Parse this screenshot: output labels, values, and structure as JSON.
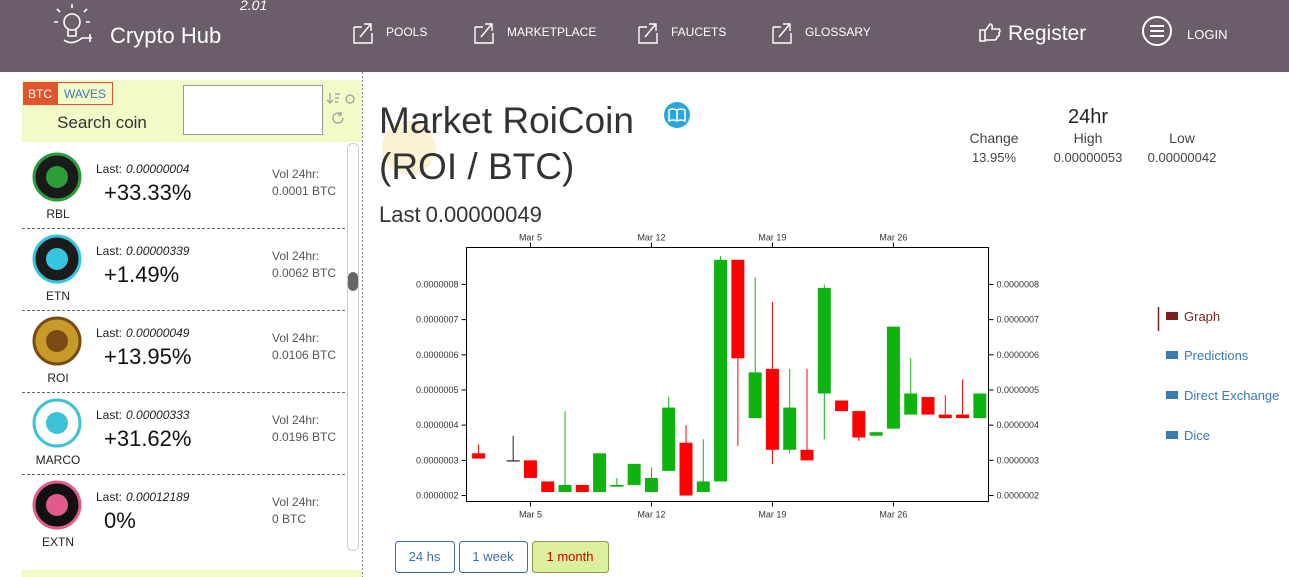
{
  "header": {
    "logo": "Crypto Hub",
    "version": "2.01",
    "nav": [
      "POOLS",
      "MARKETPLACE",
      "FAUCETS",
      "GLOSSARY"
    ],
    "register": "Register",
    "login": "LOGIN"
  },
  "sidebar": {
    "tabs": [
      "BTC",
      "WAVES"
    ],
    "search_label": "Search coin",
    "coins": [
      {
        "symbol": "RBL",
        "last_label": "Last:",
        "last": "0.00000004",
        "change": "+33.33%",
        "vol_label": "Vol 24hr:",
        "vol": "0.0001 BTC"
      },
      {
        "symbol": "ETN",
        "last_label": "Last:",
        "last": "0.00000339",
        "change": "+1.49%",
        "vol_label": "Vol 24hr:",
        "vol": "0.0062 BTC"
      },
      {
        "symbol": "ROI",
        "last_label": "Last:",
        "last": "0.00000049",
        "change": "+13.95%",
        "vol_label": "Vol 24hr:",
        "vol": "0.0106 BTC"
      },
      {
        "symbol": "MARCO",
        "last_label": "Last:",
        "last": "0.00000333",
        "change": "+31.62%",
        "vol_label": "Vol 24hr:",
        "vol": "0.0196 BTC"
      },
      {
        "symbol": "EXTN",
        "last_label": "Last:",
        "last": "0.00012189",
        "change": "0%",
        "vol_label": "Vol 24hr:",
        "vol": "0 BTC"
      }
    ]
  },
  "market": {
    "title": "Market RoiCoin",
    "pair": "(ROI / BTC)",
    "last_label": "Last",
    "last": "0.00000049",
    "period": "24hr",
    "stats": [
      {
        "label": "Change",
        "value": "13.95%"
      },
      {
        "label": "High",
        "value": "0.00000053"
      },
      {
        "label": "Low",
        "value": "0.00000042"
      }
    ]
  },
  "side_menu": [
    "Graph",
    "Predictions",
    "Direct Exchange",
    "Dice"
  ],
  "ranges": [
    "24 hs",
    "1 week",
    "1 month"
  ],
  "chart_data": {
    "type": "candlestick",
    "x": [
      2,
      4,
      5,
      6,
      7,
      8,
      9,
      10,
      11,
      12,
      13,
      14,
      15,
      16,
      17,
      18,
      19,
      20,
      21,
      22,
      23,
      24,
      25,
      26,
      27,
      28,
      29,
      30,
      31
    ],
    "open": [
      3.2e-07,
      3e-07,
      3e-07,
      2.4e-07,
      2.1e-07,
      2.3e-07,
      2.1e-07,
      2.25e-07,
      2.3e-07,
      2.1e-07,
      2.7e-07,
      3.5e-07,
      2.1e-07,
      2.4e-07,
      8.7e-07,
      4.2e-07,
      5.6e-07,
      3.3e-07,
      3.3e-07,
      4.9e-07,
      4.7e-07,
      4.4e-07,
      3.7e-07,
      3.9e-07,
      4.3e-07,
      4.8e-07,
      4.3e-07,
      4.3e-07,
      4.2e-07
    ],
    "high": [
      3.45e-07,
      3.7e-07,
      3e-07,
      2.4e-07,
      4.4e-07,
      2.3e-07,
      3.2e-07,
      2.5e-07,
      2.9e-07,
      2.8e-07,
      4.8e-07,
      4e-07,
      3.6e-07,
      8.8e-07,
      8.7e-07,
      8.2e-07,
      7.5e-07,
      5.6e-07,
      5.6e-07,
      8e-07,
      4.7e-07,
      4.4e-07,
      3.8e-07,
      6.8e-07,
      5.9e-07,
      4.8e-07,
      4.85e-07,
      5.3e-07,
      4.9e-07
    ],
    "low": [
      3.05e-07,
      3e-07,
      2.5e-07,
      2.1e-07,
      2.1e-07,
      2.1e-07,
      2.1e-07,
      2.25e-07,
      2.3e-07,
      2.1e-07,
      2.7e-07,
      2e-07,
      2.1e-07,
      2.4e-07,
      3.4e-07,
      4.2e-07,
      2.9e-07,
      3.2e-07,
      3e-07,
      3.6e-07,
      4.4e-07,
      3.55e-07,
      3.7e-07,
      3.9e-07,
      4.3e-07,
      4.3e-07,
      4.2e-07,
      4.2e-07,
      4.2e-07
    ],
    "close": [
      3.05e-07,
      3e-07,
      2.5e-07,
      2.1e-07,
      2.3e-07,
      2.1e-07,
      3.2e-07,
      2.3e-07,
      2.9e-07,
      2.5e-07,
      4.5e-07,
      2e-07,
      2.4e-07,
      8.7e-07,
      5.9e-07,
      5.5e-07,
      3.3e-07,
      4.5e-07,
      3e-07,
      7.9e-07,
      4.4e-07,
      3.65e-07,
      3.8e-07,
      6.8e-07,
      4.9e-07,
      4.3e-07,
      4.2e-07,
      4.2e-07,
      4.9e-07
    ],
    "up_color": "#0fb30f",
    "down_color": "#ff0000",
    "xlim": [
      1.3,
      31.5
    ],
    "xticks": [
      {
        "value": 5,
        "label": "Mar 5"
      },
      {
        "value": 12,
        "label": "Mar 12"
      },
      {
        "value": 19,
        "label": "Mar 19"
      },
      {
        "value": 26,
        "label": "Mar 26"
      }
    ],
    "ylim": [
      1.83e-07,
      9.05e-07
    ],
    "yticks": [
      {
        "value": 2e-07,
        "label": "0.0000002"
      },
      {
        "value": 3e-07,
        "label": "0.0000003"
      },
      {
        "value": 4e-07,
        "label": "0.0000004"
      },
      {
        "value": 5e-07,
        "label": "0.0000005"
      },
      {
        "value": 6e-07,
        "label": "0.0000006"
      },
      {
        "value": 7e-07,
        "label": "0.0000007"
      },
      {
        "value": 8e-07,
        "label": "0.0000008"
      }
    ]
  }
}
